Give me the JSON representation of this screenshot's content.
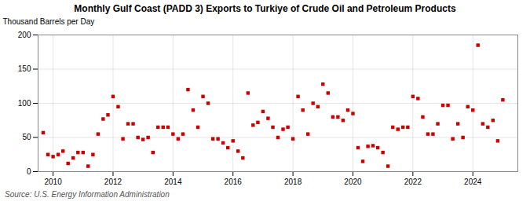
{
  "chart_data": {
    "type": "scatter",
    "title": "Monthly Gulf Coast (PADD 3) Exports to Turkiye of Crude Oil and Petroleum Products",
    "ylabel": "Thousand Barrels per Day",
    "caption": "Source: U.S. Energy Information Administration",
    "color": "#cc0000",
    "marker": "square",
    "grid": true,
    "xlim": [
      2009.5,
      2025.5
    ],
    "xticks": [
      2010,
      2012,
      2014,
      2016,
      2018,
      2020,
      2022,
      2024
    ],
    "ylim": [
      0,
      200
    ],
    "yticks": [
      0,
      50,
      100,
      150,
      200
    ],
    "x": [
      2009.67,
      2009.83,
      2010.0,
      2010.17,
      2010.33,
      2010.5,
      2010.67,
      2010.83,
      2011.0,
      2011.17,
      2011.33,
      2011.5,
      2011.67,
      2011.83,
      2012.0,
      2012.17,
      2012.33,
      2012.5,
      2012.67,
      2012.83,
      2013.0,
      2013.17,
      2013.33,
      2013.5,
      2013.67,
      2013.83,
      2014.0,
      2014.17,
      2014.33,
      2014.5,
      2014.67,
      2014.83,
      2015.0,
      2015.17,
      2015.33,
      2015.5,
      2015.67,
      2015.83,
      2016.0,
      2016.17,
      2016.33,
      2016.5,
      2016.67,
      2016.83,
      2017.0,
      2017.17,
      2017.33,
      2017.5,
      2017.67,
      2017.83,
      2018.0,
      2018.17,
      2018.33,
      2018.5,
      2018.67,
      2018.83,
      2019.0,
      2019.17,
      2019.33,
      2019.5,
      2019.67,
      2019.83,
      2020.0,
      2020.17,
      2020.33,
      2020.5,
      2020.67,
      2020.83,
      2021.0,
      2021.17,
      2021.33,
      2021.5,
      2021.67,
      2021.83,
      2022.0,
      2022.17,
      2022.33,
      2022.5,
      2022.67,
      2022.83,
      2023.0,
      2023.17,
      2023.33,
      2023.5,
      2023.67,
      2023.83,
      2024.0,
      2024.17,
      2024.33,
      2024.5,
      2024.67,
      2024.83,
      2025.0
    ],
    "values": [
      57,
      25,
      22,
      25,
      30,
      12,
      20,
      28,
      28,
      8,
      25,
      55,
      77,
      83,
      110,
      95,
      48,
      70,
      70,
      50,
      47,
      50,
      28,
      65,
      65,
      65,
      55,
      48,
      55,
      120,
      90,
      65,
      110,
      100,
      48,
      48,
      42,
      35,
      45,
      30,
      20,
      115,
      68,
      72,
      88,
      78,
      65,
      50,
      62,
      65,
      48,
      110,
      90,
      55,
      100,
      95,
      128,
      115,
      80,
      80,
      75,
      90,
      85,
      35,
      15,
      37,
      38,
      35,
      28,
      8,
      65,
      62,
      65,
      65,
      110,
      107,
      80,
      55,
      55,
      70,
      97,
      97,
      48,
      70,
      50,
      95,
      90,
      185,
      70,
      65,
      75,
      45,
      105
    ]
  }
}
